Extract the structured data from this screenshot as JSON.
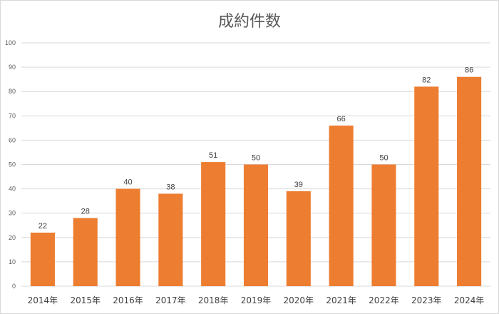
{
  "chart_data": {
    "type": "bar",
    "title": "成約件数",
    "categories": [
      "2014年",
      "2015年",
      "2016年",
      "2017年",
      "2018年",
      "2019年",
      "2020年",
      "2021年",
      "2022年",
      "2023年",
      "2024年"
    ],
    "values": [
      22,
      28,
      40,
      38,
      51,
      50,
      39,
      66,
      50,
      82,
      86
    ],
    "ylim": [
      0,
      100
    ],
    "yticks": [
      "0",
      "10",
      "20",
      "30",
      "40",
      "50",
      "60",
      "70",
      "80",
      "90",
      "100"
    ],
    "grid": true,
    "legend": "none",
    "bar_color": "#ED7D31",
    "grid_color": "#D9D9D9",
    "xlabel": "",
    "ylabel": ""
  }
}
